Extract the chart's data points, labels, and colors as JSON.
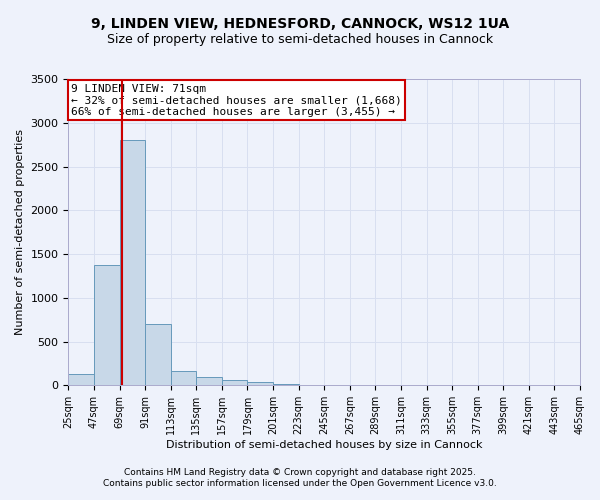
{
  "title_line1": "9, LINDEN VIEW, HEDNESFORD, CANNOCK, WS12 1UA",
  "title_line2": "Size of property relative to semi-detached houses in Cannock",
  "xlabel": "Distribution of semi-detached houses by size in Cannock",
  "ylabel": "Number of semi-detached properties",
  "bin_edges": [
    25,
    47,
    69,
    91,
    113,
    135,
    157,
    179,
    201,
    223,
    245,
    267,
    289,
    311,
    333,
    355,
    377,
    399,
    421,
    443,
    465
  ],
  "bar_heights": [
    130,
    1380,
    2800,
    700,
    160,
    100,
    60,
    40,
    20,
    0,
    0,
    0,
    0,
    0,
    0,
    0,
    0,
    0,
    0,
    0
  ],
  "bar_color": "#c8d8e8",
  "bar_edge_color": "#6699bb",
  "property_value": 71,
  "property_label": "9 LINDEN VIEW: 71sqm",
  "annotation_line1": "← 32% of semi-detached houses are smaller (1,668)",
  "annotation_line2": "66% of semi-detached houses are larger (3,455) →",
  "annotation_box_color": "#ffffff",
  "annotation_box_edge_color": "#cc0000",
  "vline_color": "#cc0000",
  "ylim": [
    0,
    3500
  ],
  "yticks": [
    0,
    500,
    1000,
    1500,
    2000,
    2500,
    3000,
    3500
  ],
  "grid_color": "#d8dff0",
  "background_color": "#eef2fb",
  "footer_line1": "Contains HM Land Registry data © Crown copyright and database right 2025.",
  "footer_line2": "Contains public sector information licensed under the Open Government Licence v3.0.",
  "title_fontsize": 10,
  "subtitle_fontsize": 9,
  "tick_fontsize": 7,
  "annotation_fontsize": 8,
  "ylabel_fontsize": 8,
  "xlabel_fontsize": 8,
  "footer_fontsize": 6.5
}
